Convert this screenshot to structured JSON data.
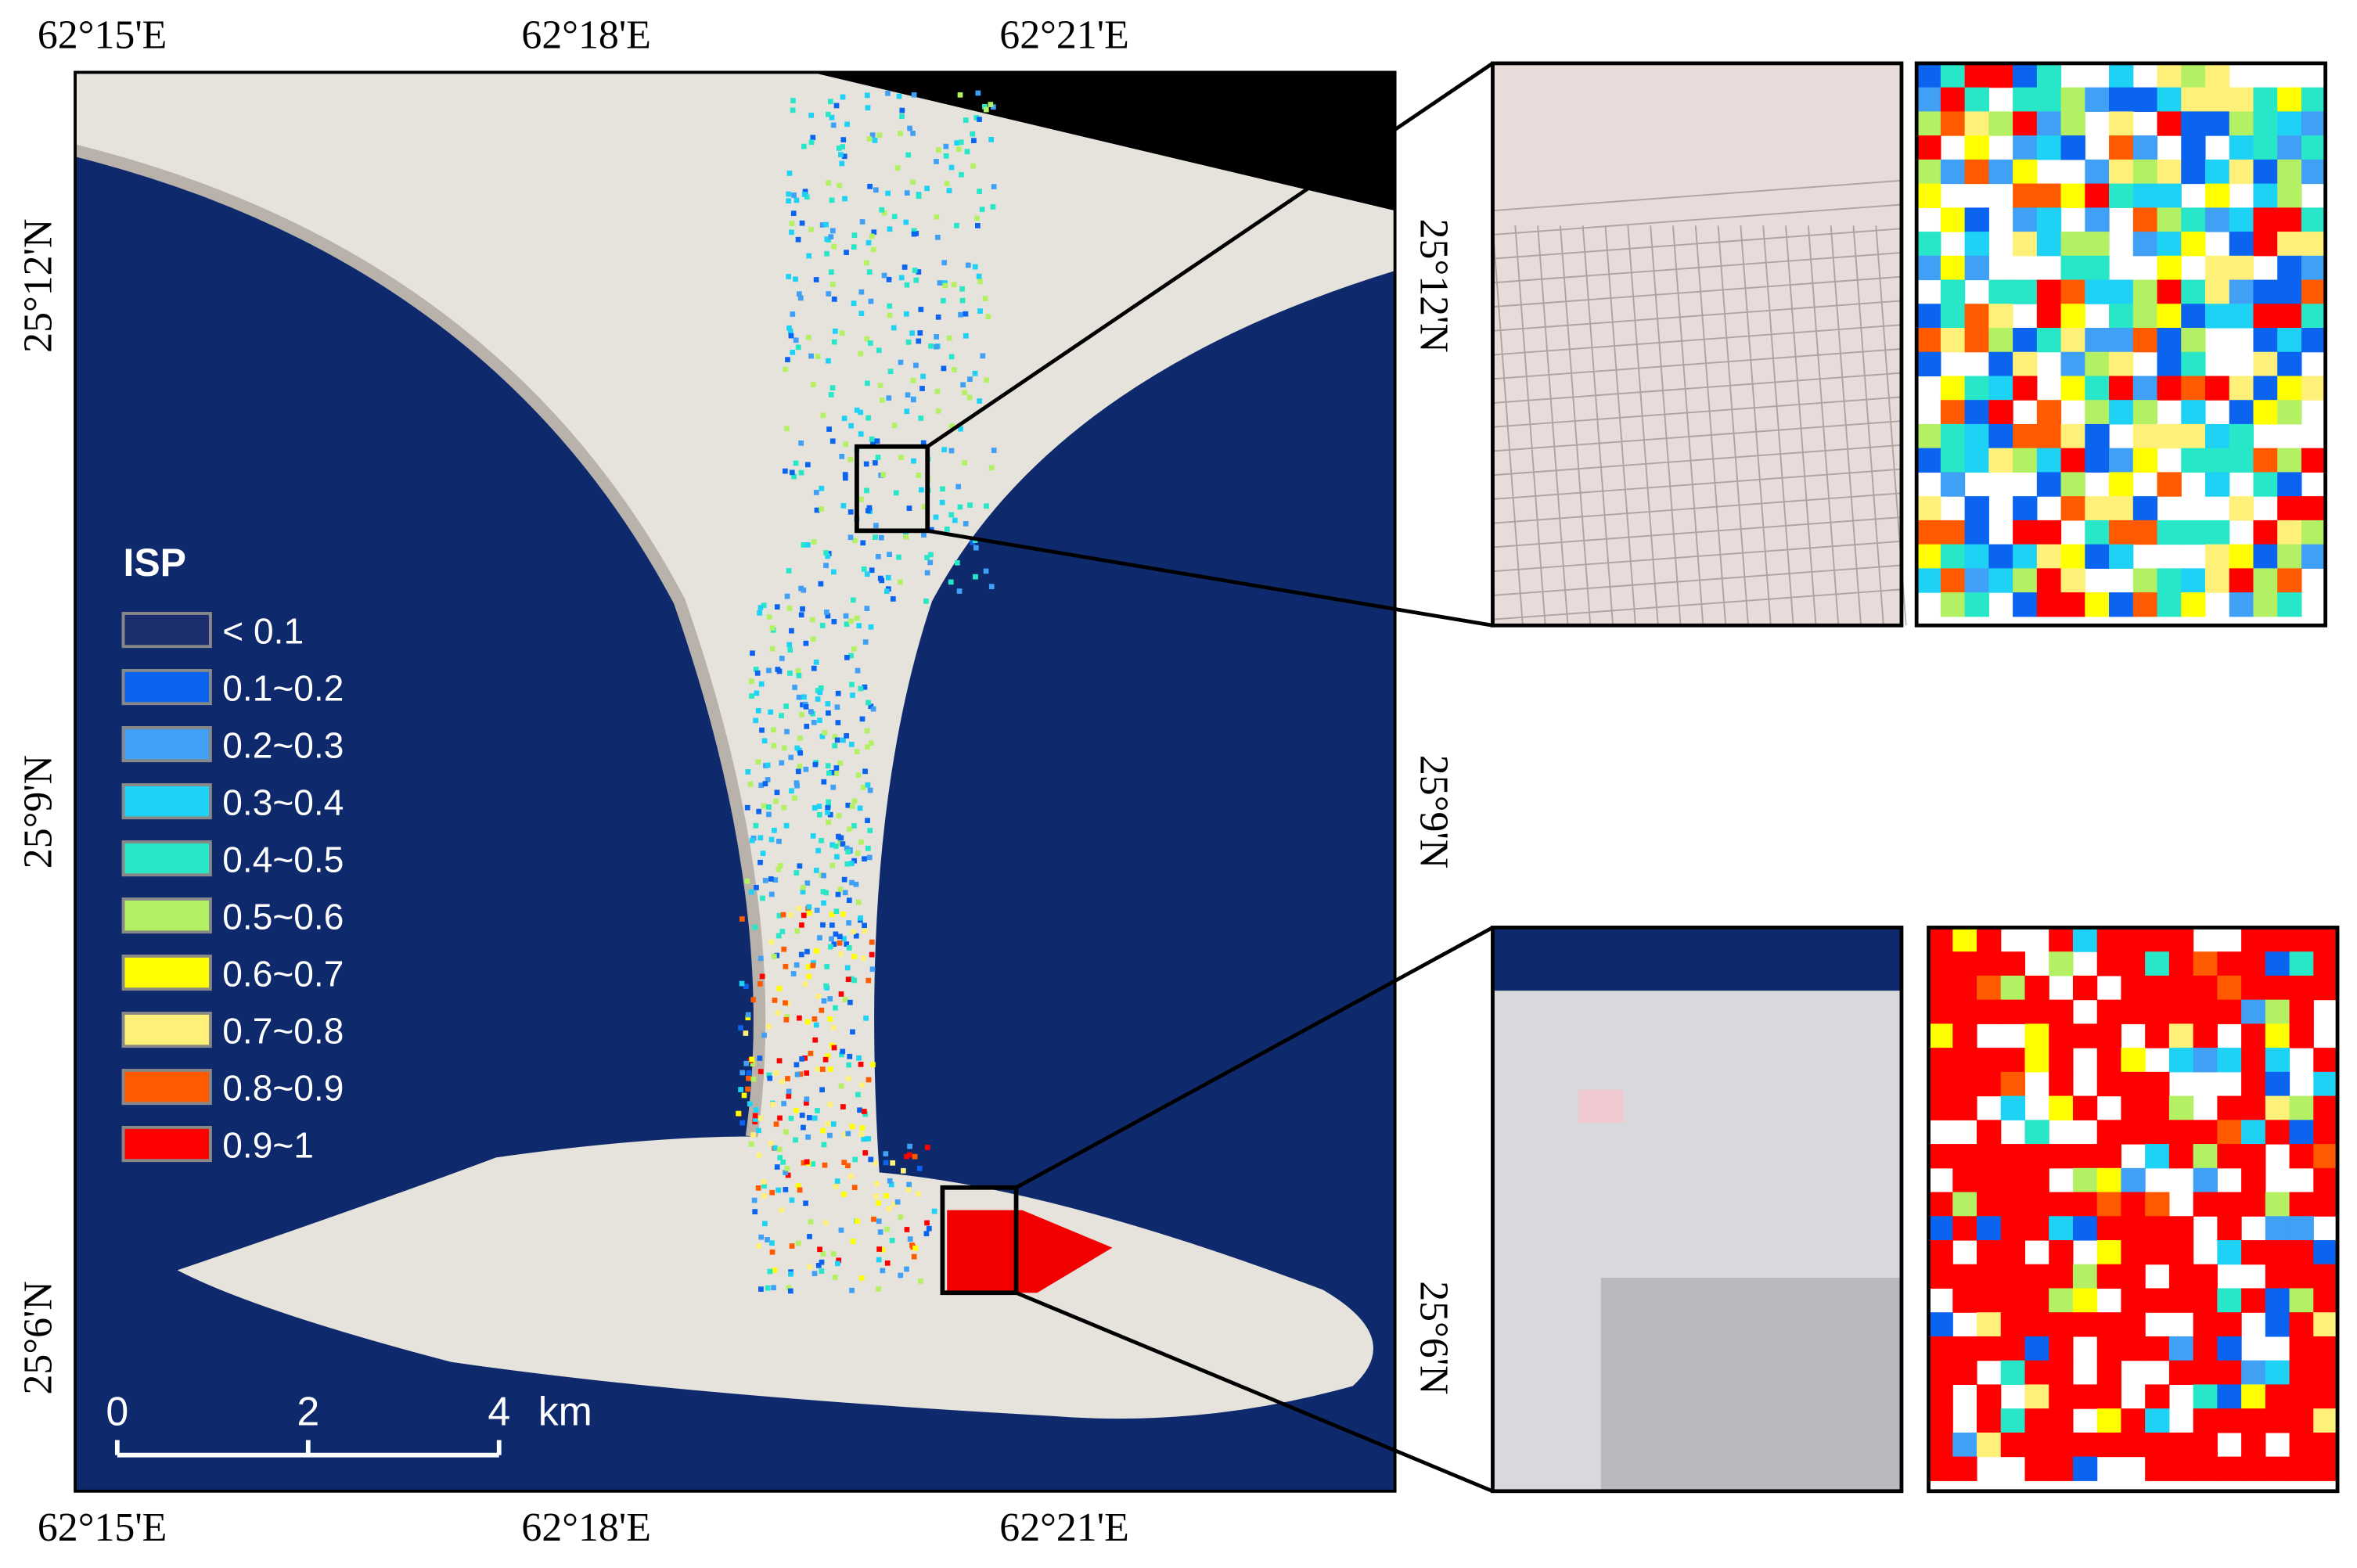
{
  "map": {
    "longitude_labels_top": [
      "62°15'E",
      "62°18'E",
      "62°21'E"
    ],
    "longitude_labels_bottom": [
      "62°15'E",
      "62°18'E",
      "62°21'E"
    ],
    "latitude_labels_left": [
      "25°12'N",
      "25°9'N",
      "25°6'N"
    ],
    "latitude_labels_right": [
      "25°12'N",
      "25°9'N",
      "25°6'N"
    ],
    "legend": {
      "title": "ISP",
      "items": [
        {
          "label": "< 0.1",
          "color": "#1b2f6e"
        },
        {
          "label": "0.1~0.2",
          "color": "#0a64f0"
        },
        {
          "label": "0.2~0.3",
          "color": "#3fa0f5"
        },
        {
          "label": "0.3~0.4",
          "color": "#1ed2f5"
        },
        {
          "label": "0.4~0.5",
          "color": "#28e6c8"
        },
        {
          "label": "0.5~0.6",
          "color": "#b4f064"
        },
        {
          "label": "0.6~0.7",
          "color": "#ffff00"
        },
        {
          "label": "0.7~0.8",
          "color": "#fff07a"
        },
        {
          "label": "0.8~0.9",
          "color": "#ff5a00"
        },
        {
          "label": "0.9~1",
          "color": "#ff0000"
        }
      ]
    },
    "scale_bar": {
      "ticks": [
        0,
        2,
        4
      ],
      "unit": "km"
    }
  }
}
